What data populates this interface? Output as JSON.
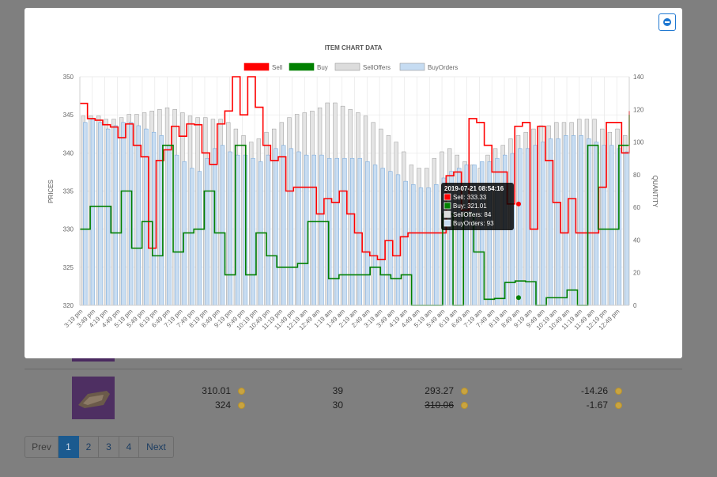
{
  "table": {
    "rows": [
      {
        "sell_price": "310.01",
        "sell_qty": "39",
        "sell_after_fee": "293.27",
        "sell_diff": "-14.26",
        "buy_price": "324",
        "buy_qty": "30",
        "buy_after_fee": "310.06",
        "buy_diff": "-1.67"
      }
    ]
  },
  "pagination": {
    "prev": "Prev",
    "pages": [
      "1",
      "2",
      "3",
      "4"
    ],
    "active": "1",
    "next": "Next"
  },
  "modal": {
    "close_icon": "minus-circle-icon",
    "title": "ITEM CHART DATA"
  },
  "chart_data": {
    "type": "line",
    "title": "ITEM CHART DATA",
    "ylabel": "PRICES",
    "y2label": "QUANTITY",
    "ylim": [
      320,
      350
    ],
    "y2lim": [
      0,
      140
    ],
    "yticks": [
      320,
      325,
      330,
      335,
      340,
      345,
      350
    ],
    "y2ticks": [
      0,
      20,
      40,
      60,
      80,
      100,
      120,
      140
    ],
    "grid": true,
    "legend_position": "top",
    "legend": [
      {
        "name": "Sell",
        "color": "#ff0000"
      },
      {
        "name": "Buy",
        "color": "#008000"
      },
      {
        "name": "SellOffers",
        "color": "#dcdcdc"
      },
      {
        "name": "BuyOrders",
        "color": "#c6dcf2"
      }
    ],
    "x_tick_labels": [
      "3:19 pm",
      "3:49 pm",
      "4:19 pm",
      "4:49 pm",
      "5:19 pm",
      "5:49 pm",
      "6:19 pm",
      "6:49 pm",
      "7:19 pm",
      "7:49 pm",
      "8:19 pm",
      "8:49 pm",
      "9:19 pm",
      "9:49 pm",
      "10:19 pm",
      "10:49 pm",
      "11:19 pm",
      "11:49 pm",
      "12:19 am",
      "12:49 am",
      "1:19 am",
      "1:49 am",
      "2:19 am",
      "2:49 am",
      "3:19 am",
      "3:49 am",
      "4:19 am",
      "4:49 am",
      "5:19 am",
      "5:49 am",
      "6:19 am",
      "6:49 am",
      "7:19 am",
      "7:49 am",
      "8:19 am",
      "8:49 am",
      "9:19 am",
      "9:49 am",
      "10:19 am",
      "10:49 am",
      "11:19 am",
      "11:49 am",
      "12:19 pm",
      "12:49 pm"
    ],
    "series": [
      {
        "name": "Sell",
        "color": "#ff0000",
        "axis": "left",
        "values": [
          346.5,
          344.5,
          344.3,
          343.7,
          343.4,
          342,
          343.8,
          341,
          339.5,
          327.5,
          339,
          340.4,
          343.5,
          342.2,
          343.8,
          343.7,
          340,
          338.5,
          343.8,
          345.5,
          350,
          345,
          350,
          346,
          341,
          339,
          339.5,
          335,
          335.5,
          335.5,
          335.5,
          332,
          334,
          333.5,
          335,
          332,
          329.5,
          327,
          326.5,
          326,
          328.5,
          326.5,
          329,
          329.5,
          329.5,
          329.5,
          329.5,
          329.5,
          337,
          337.5,
          332.5,
          344.5,
          344,
          341,
          337.5,
          337.5,
          333.3,
          343.5,
          344,
          330,
          343.5,
          339,
          333.5,
          329.5,
          334,
          329.5,
          329.5,
          329.5,
          335.5,
          344,
          344,
          340,
          345.5
        ]
      },
      {
        "name": "Buy",
        "color": "#008000",
        "axis": "left",
        "values": [
          330,
          333,
          333,
          329.5,
          335,
          327.5,
          331,
          326.5,
          341,
          327,
          329.5,
          330,
          335,
          329.5,
          324,
          341,
          324,
          329.5,
          326.5,
          325,
          325,
          325.5,
          331,
          331,
          323.5,
          324,
          324,
          324,
          325,
          324,
          323.5,
          324,
          320,
          320,
          320,
          332,
          320,
          332,
          327,
          320.8,
          320.9,
          323,
          323.2,
          323.1,
          320,
          321,
          321,
          322,
          320,
          341,
          330,
          330,
          341,
          345
        ]
      },
      {
        "name": "SellOffers",
        "color": "#bdbdbd",
        "axis": "right",
        "values": [
          116,
          116,
          116,
          114,
          114,
          115,
          117,
          117,
          118,
          119,
          120,
          121,
          120,
          118,
          116,
          115,
          115,
          114,
          114,
          112,
          108,
          104,
          100,
          102,
          106,
          108,
          112,
          115,
          117,
          118,
          119,
          121,
          124,
          124,
          122,
          120,
          118,
          116,
          112,
          108,
          104,
          100,
          94,
          86,
          84,
          84,
          90,
          94,
          96,
          92,
          88,
          86,
          84,
          92,
          96,
          98,
          102,
          104,
          106,
          108,
          110,
          110,
          112,
          112,
          112,
          114,
          114,
          114,
          108,
          106,
          108,
          104
        ]
      },
      {
        "name": "BuyOrders",
        "color": "#5b9bd5",
        "axis": "right",
        "values": [
          112,
          114,
          112,
          108,
          110,
          112,
          112,
          110,
          108,
          106,
          104,
          98,
          92,
          88,
          84,
          82,
          90,
          96,
          98,
          94,
          92,
          92,
          90,
          88,
          92,
          96,
          98,
          96,
          94,
          92,
          92,
          92,
          90,
          90,
          90,
          90,
          90,
          88,
          86,
          84,
          82,
          80,
          76,
          74,
          72,
          72,
          74,
          78,
          82,
          84,
          86,
          86,
          88,
          88,
          90,
          92,
          93,
          96,
          96,
          98,
          100,
          102,
          102,
          104,
          104,
          104,
          102,
          100,
          98,
          98,
          96,
          94
        ]
      }
    ],
    "tooltip": {
      "title": "2019-07-21 08:54:16",
      "lines": [
        "Sell: 333.33",
        "Buy: 321.01",
        "SellOffers: 84",
        "BuyOrders: 93"
      ]
    }
  }
}
